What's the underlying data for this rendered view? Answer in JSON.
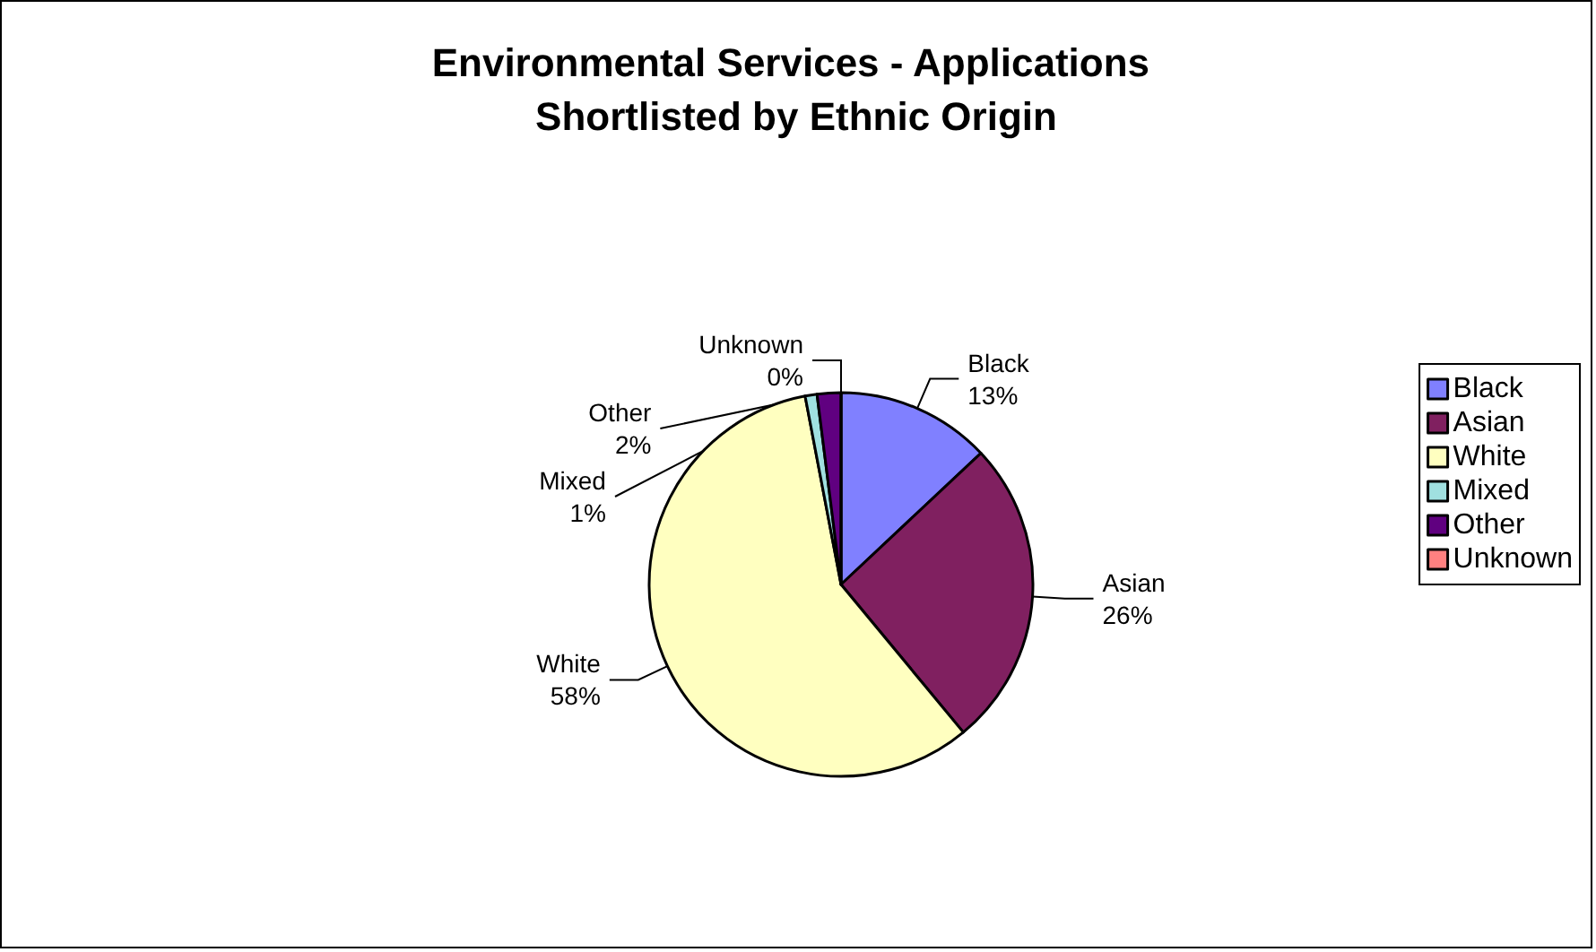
{
  "chart_data": {
    "type": "pie",
    "title": "Environmental Services - Applications Shortlisted by Ethnic Origin",
    "categories": [
      "Black",
      "Asian",
      "White",
      "Mixed",
      "Other",
      "Unknown"
    ],
    "values": [
      13,
      26,
      58,
      1,
      2,
      0
    ],
    "value_labels": [
      "13%",
      "26%",
      "58%",
      "1%",
      "2%",
      "0%"
    ],
    "colors": [
      "#8080ff",
      "#802060",
      "#ffffc0",
      "#a0e0e0",
      "#600080",
      "#ff8080"
    ],
    "legend": "right"
  }
}
